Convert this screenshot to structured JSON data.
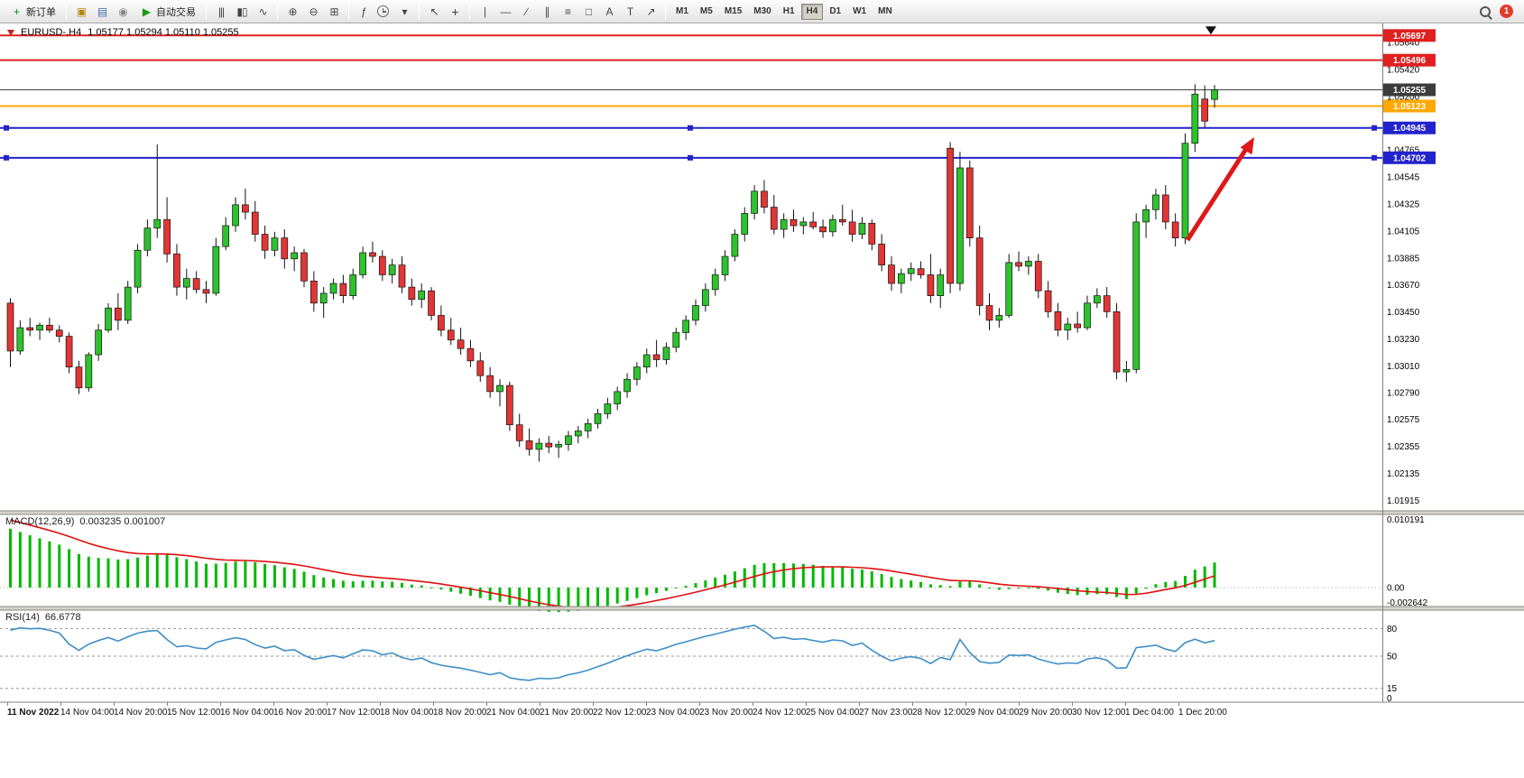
{
  "toolbar": {
    "groups": [
      {
        "items": [
          {
            "name": "new-order-button",
            "icon": "new-order",
            "label": "新订单"
          }
        ]
      },
      {
        "items": [
          {
            "name": "charts-button",
            "icon": "chart-window"
          },
          {
            "name": "profiles-button",
            "icon": "profiles"
          },
          {
            "name": "community-button",
            "icon": "community"
          },
          {
            "name": "autotrading-button",
            "icon": "autotrade",
            "label": "自动交易"
          }
        ]
      },
      {
        "items": [
          {
            "name": "bar-chart-button",
            "icon": "bars"
          },
          {
            "name": "candlestick-chart-button",
            "icon": "candles"
          },
          {
            "name": "line-chart-button",
            "icon": "line"
          }
        ]
      },
      {
        "items": [
          {
            "name": "zoom-in-button",
            "icon": "zoom-in"
          },
          {
            "name": "zoom-out-button",
            "icon": "zoom-out"
          },
          {
            "name": "tile-windows-button",
            "icon": "tile"
          }
        ]
      },
      {
        "items": [
          {
            "name": "indicators-button",
            "icon": "indicators"
          },
          {
            "name": "periods-button",
            "icon": "clock"
          },
          {
            "name": "templates-button",
            "icon": "template"
          }
        ]
      },
      {
        "items": [
          {
            "name": "cursor-button",
            "icon": "cursor"
          },
          {
            "name": "crosshair-button",
            "icon": "crosshair"
          }
        ]
      },
      {
        "items": [
          {
            "name": "vertical-line-button",
            "icon": "vline"
          },
          {
            "name": "horizontal-line-button",
            "icon": "hline"
          },
          {
            "name": "trendline-button",
            "icon": "trendline"
          },
          {
            "name": "channel-button",
            "icon": "channel"
          },
          {
            "name": "fibonacci-button",
            "icon": "fibonacci"
          },
          {
            "name": "shapes-button",
            "icon": "shapes"
          },
          {
            "name": "text-button",
            "icon": "text"
          },
          {
            "name": "label-button",
            "icon": "label"
          },
          {
            "name": "arrows-button",
            "icon": "arrows"
          }
        ]
      }
    ],
    "timeframes": [
      "M1",
      "M5",
      "M15",
      "M30",
      "H1",
      "H4",
      "D1",
      "W1",
      "MN"
    ],
    "active_timeframe": "H4",
    "notification_badge": "1"
  },
  "chart": {
    "title": "EURUSD-,H4",
    "ohlc": "1.05177 1.05294 1.05110 1.05255",
    "arrow_color": "#e01818",
    "candle_up_color": "#2ec22e",
    "candle_down_color": "#e23535",
    "wick_color": "#111111",
    "lines": [
      {
        "price": "1.05697",
        "value": 1.05697,
        "color": "#e02020",
        "chip": "#e02020",
        "width": 2
      },
      {
        "price": "1.05496",
        "value": 1.05496,
        "color": "#e02020",
        "chip": "#e02020",
        "width": 2
      },
      {
        "price": "1.05255",
        "value": 1.05255,
        "color": "#444444",
        "chip": "#3c3c3c",
        "width": 1,
        "role": "bid"
      },
      {
        "price": "1.05123",
        "value": 1.05123,
        "color": "#ffa800",
        "chip": "#ffa800",
        "width": 2
      },
      {
        "price": "1.04945",
        "value": 1.04945,
        "color": "#2323cc",
        "chip": "#2323cc",
        "width": 2,
        "handles": true
      },
      {
        "price": "1.04702",
        "value": 1.04702,
        "color": "#2323cc",
        "chip": "#2323cc",
        "width": 2,
        "handles": true
      }
    ],
    "price_axis": {
      "ticks": [
        "1.05640",
        "1.05420",
        "1.05200",
        "1.04765",
        "1.04545",
        "1.04325",
        "1.04105",
        "1.03885",
        "1.03670",
        "1.03450",
        "1.03230",
        "1.03010",
        "1.02790",
        "1.02575",
        "1.02355",
        "1.02135",
        "1.01915"
      ]
    },
    "time_labels": [
      "11 Nov 2022",
      "14 Nov 04:00",
      "14 Nov 20:00",
      "15 Nov 12:00",
      "16 Nov 04:00",
      "16 Nov 20:00",
      "17 Nov 12:00",
      "18 Nov 04:00",
      "18 Nov 20:00",
      "21 Nov 04:00",
      "21 Nov 20:00",
      "22 Nov 12:00",
      "23 Nov 04:00",
      "23 Nov 20:00",
      "24 Nov 12:00",
      "25 Nov 04:00",
      "27 Nov 23:00",
      "28 Nov 12:00",
      "29 Nov 04:00",
      "29 Nov 20:00",
      "30 Nov 12:00",
      "1 Dec 04:00",
      "1 Dec 20:00"
    ],
    "candles": [
      [
        1.0352,
        1.0356,
        1.03,
        1.0313
      ],
      [
        1.0313,
        1.0338,
        1.031,
        1.0332
      ],
      [
        1.0332,
        1.034,
        1.0325,
        1.033
      ],
      [
        1.033,
        1.0336,
        1.0322,
        1.0334
      ],
      [
        1.0334,
        1.034,
        1.0328,
        1.033
      ],
      [
        1.033,
        1.0334,
        1.032,
        1.0325
      ],
      [
        1.0325,
        1.0328,
        1.0295,
        1.03
      ],
      [
        1.03,
        1.0305,
        1.0278,
        1.0283
      ],
      [
        1.0283,
        1.0312,
        1.028,
        1.031
      ],
      [
        1.031,
        1.0335,
        1.0305,
        1.033
      ],
      [
        1.033,
        1.0352,
        1.0328,
        1.0348
      ],
      [
        1.0348,
        1.036,
        1.033,
        1.0338
      ],
      [
        1.0338,
        1.037,
        1.0335,
        1.0365
      ],
      [
        1.0365,
        1.04,
        1.036,
        1.0395
      ],
      [
        1.0395,
        1.042,
        1.039,
        1.0413
      ],
      [
        1.0413,
        1.0481,
        1.0405,
        1.042
      ],
      [
        1.042,
        1.0438,
        1.0385,
        1.0392
      ],
      [
        1.0392,
        1.04,
        1.0358,
        1.0365
      ],
      [
        1.0365,
        1.038,
        1.0355,
        1.0372
      ],
      [
        1.0372,
        1.0378,
        1.036,
        1.0363
      ],
      [
        1.0363,
        1.037,
        1.0352,
        1.036
      ],
      [
        1.036,
        1.0405,
        1.0358,
        1.0398
      ],
      [
        1.0398,
        1.0422,
        1.0395,
        1.0415
      ],
      [
        1.0415,
        1.0438,
        1.041,
        1.0432
      ],
      [
        1.0432,
        1.0445,
        1.042,
        1.0426
      ],
      [
        1.0426,
        1.0435,
        1.0402,
        1.0408
      ],
      [
        1.0408,
        1.0415,
        1.0388,
        1.0395
      ],
      [
        1.0395,
        1.041,
        1.039,
        1.0405
      ],
      [
        1.0405,
        1.0412,
        1.038,
        1.0388
      ],
      [
        1.0388,
        1.0398,
        1.0378,
        1.0393
      ],
      [
        1.0393,
        1.0396,
        1.0365,
        1.037
      ],
      [
        1.037,
        1.0378,
        1.0345,
        1.0352
      ],
      [
        1.0352,
        1.0365,
        1.034,
        1.036
      ],
      [
        1.036,
        1.0372,
        1.0355,
        1.0368
      ],
      [
        1.0368,
        1.0375,
        1.0352,
        1.0358
      ],
      [
        1.0358,
        1.038,
        1.0355,
        1.0375
      ],
      [
        1.0375,
        1.0398,
        1.0372,
        1.0393
      ],
      [
        1.0393,
        1.0402,
        1.0385,
        1.039
      ],
      [
        1.039,
        1.0395,
        1.037,
        1.0375
      ],
      [
        1.0375,
        1.0388,
        1.0368,
        1.0383
      ],
      [
        1.0383,
        1.039,
        1.036,
        1.0365
      ],
      [
        1.0365,
        1.0372,
        1.035,
        1.0355
      ],
      [
        1.0355,
        1.0368,
        1.0348,
        1.0362
      ],
      [
        1.0362,
        1.0365,
        1.0338,
        1.0342
      ],
      [
        1.0342,
        1.035,
        1.0325,
        1.033
      ],
      [
        1.033,
        1.034,
        1.0318,
        1.0322
      ],
      [
        1.0322,
        1.0332,
        1.031,
        1.0315
      ],
      [
        1.0315,
        1.0322,
        1.03,
        1.0305
      ],
      [
        1.0305,
        1.0312,
        1.0288,
        1.0293
      ],
      [
        1.0293,
        1.03,
        1.0275,
        1.028
      ],
      [
        1.028,
        1.029,
        1.0268,
        1.0285
      ],
      [
        1.0285,
        1.0288,
        1.0248,
        1.0253
      ],
      [
        1.0253,
        1.0262,
        1.0235,
        1.024
      ],
      [
        1.024,
        1.025,
        1.0228,
        1.0233
      ],
      [
        1.0233,
        1.0242,
        1.0223,
        1.0238
      ],
      [
        1.0238,
        1.0244,
        1.023,
        1.0235
      ],
      [
        1.0235,
        1.024,
        1.0226,
        1.0237
      ],
      [
        1.0237,
        1.0248,
        1.0232,
        1.0244
      ],
      [
        1.0244,
        1.0252,
        1.0238,
        1.0248
      ],
      [
        1.0248,
        1.0258,
        1.0242,
        1.0254
      ],
      [
        1.0254,
        1.0266,
        1.025,
        1.0262
      ],
      [
        1.0262,
        1.0275,
        1.0258,
        1.027
      ],
      [
        1.027,
        1.0284,
        1.0265,
        1.028
      ],
      [
        1.028,
        1.0295,
        1.0275,
        1.029
      ],
      [
        1.029,
        1.0304,
        1.0285,
        1.03
      ],
      [
        1.03,
        1.0315,
        1.0295,
        1.031
      ],
      [
        1.031,
        1.0322,
        1.03,
        1.0306
      ],
      [
        1.0306,
        1.032,
        1.0302,
        1.0316
      ],
      [
        1.0316,
        1.0332,
        1.0312,
        1.0328
      ],
      [
        1.0328,
        1.0342,
        1.0322,
        1.0338
      ],
      [
        1.0338,
        1.0355,
        1.0334,
        1.035
      ],
      [
        1.035,
        1.0368,
        1.0345,
        1.0363
      ],
      [
        1.0363,
        1.038,
        1.0358,
        1.0375
      ],
      [
        1.0375,
        1.0395,
        1.037,
        1.039
      ],
      [
        1.039,
        1.0412,
        1.0386,
        1.0408
      ],
      [
        1.0408,
        1.043,
        1.0402,
        1.0425
      ],
      [
        1.0425,
        1.0448,
        1.042,
        1.0443
      ],
      [
        1.0443,
        1.0452,
        1.0425,
        1.043
      ],
      [
        1.043,
        1.044,
        1.0408,
        1.0412
      ],
      [
        1.0412,
        1.0425,
        1.0405,
        1.042
      ],
      [
        1.042,
        1.0428,
        1.041,
        1.0415
      ],
      [
        1.0415,
        1.0422,
        1.0408,
        1.0418
      ],
      [
        1.0418,
        1.0426,
        1.0412,
        1.0414
      ],
      [
        1.0414,
        1.042,
        1.0405,
        1.041
      ],
      [
        1.041,
        1.0424,
        1.0406,
        1.042
      ],
      [
        1.042,
        1.0432,
        1.0415,
        1.0418
      ],
      [
        1.0418,
        1.0428,
        1.0402,
        1.0408
      ],
      [
        1.0408,
        1.0422,
        1.0404,
        1.0417
      ],
      [
        1.0417,
        1.042,
        1.0395,
        1.04
      ],
      [
        1.04,
        1.0408,
        1.0378,
        1.0383
      ],
      [
        1.0383,
        1.039,
        1.0362,
        1.0368
      ],
      [
        1.0368,
        1.038,
        1.036,
        1.0376
      ],
      [
        1.0376,
        1.0385,
        1.037,
        1.038
      ],
      [
        1.038,
        1.0386,
        1.0372,
        1.0375
      ],
      [
        1.0375,
        1.0392,
        1.0352,
        1.0358
      ],
      [
        1.0358,
        1.038,
        1.0348,
        1.0375
      ],
      [
        1.0478,
        1.0483,
        1.036,
        1.0368
      ],
      [
        1.0368,
        1.0475,
        1.0362,
        1.0462
      ],
      [
        1.0462,
        1.0468,
        1.0398,
        1.0405
      ],
      [
        1.0405,
        1.0415,
        1.0342,
        1.035
      ],
      [
        1.035,
        1.036,
        1.033,
        1.0338
      ],
      [
        1.0338,
        1.0348,
        1.0332,
        1.0342
      ],
      [
        1.0342,
        1.0392,
        1.034,
        1.0385
      ],
      [
        1.0385,
        1.0394,
        1.0378,
        1.0382
      ],
      [
        1.0382,
        1.039,
        1.0375,
        1.0386
      ],
      [
        1.0386,
        1.0392,
        1.0356,
        1.0362
      ],
      [
        1.0362,
        1.037,
        1.034,
        1.0345
      ],
      [
        1.0345,
        1.0352,
        1.0325,
        1.033
      ],
      [
        1.033,
        1.034,
        1.0322,
        1.0335
      ],
      [
        1.0335,
        1.0345,
        1.0328,
        1.0332
      ],
      [
        1.0332,
        1.0358,
        1.033,
        1.0352
      ],
      [
        1.0352,
        1.0364,
        1.0348,
        1.0358
      ],
      [
        1.0358,
        1.0365,
        1.034,
        1.0345
      ],
      [
        1.0345,
        1.0352,
        1.029,
        1.0296
      ],
      [
        1.0296,
        1.0305,
        1.0288,
        1.0298
      ],
      [
        1.0298,
        1.0425,
        1.0295,
        1.0418
      ],
      [
        1.0418,
        1.0432,
        1.0405,
        1.0428
      ],
      [
        1.0428,
        1.0445,
        1.042,
        1.044
      ],
      [
        1.044,
        1.0448,
        1.0412,
        1.0418
      ],
      [
        1.0418,
        1.0425,
        1.0398,
        1.0405
      ],
      [
        1.0405,
        1.049,
        1.04,
        1.0482
      ],
      [
        1.0482,
        1.053,
        1.0475,
        1.0522
      ],
      [
        1.0518,
        1.0529,
        1.0495,
        1.05
      ],
      [
        1.05177,
        1.05294,
        1.0511,
        1.05255
      ]
    ]
  },
  "macd": {
    "label": "MACD(12,26,9)",
    "values": "0.003235 0.001007",
    "scale_max": "0.010191",
    "scale_zero": "0.00",
    "scale_min": "-0.002642",
    "histogram_color": "#00b800",
    "signal_color": "#e01010"
  },
  "rsi": {
    "label": "RSI(14)",
    "value": "66.6778",
    "levels": [
      "80",
      "50",
      "15"
    ],
    "scale_min_label": "0",
    "line_color": "#3e8ec6"
  }
}
